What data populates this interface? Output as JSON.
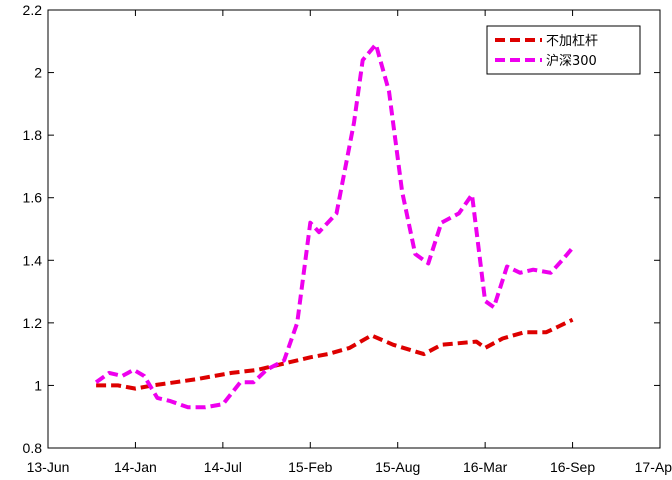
{
  "chart_data": {
    "type": "line",
    "title": "",
    "xlabel": "",
    "ylabel": "",
    "x_ticks": [
      "13-Jun",
      "14-Jan",
      "14-Jul",
      "15-Feb",
      "15-Aug",
      "16-Mar",
      "16-Sep",
      "17-Ap"
    ],
    "y_ticks": [
      "0.8",
      "1",
      "1.2",
      "1.4",
      "1.6",
      "1.8",
      "2",
      "2.2"
    ],
    "ylim": [
      0.8,
      2.2
    ],
    "grid": false,
    "legend_position": "top-right",
    "series": [
      {
        "name": "不加杠杆",
        "color": "#dd0000",
        "style": "dashed",
        "points": [
          [
            0.55,
            1.0
          ],
          [
            0.8,
            1.0
          ],
          [
            1.0,
            0.99
          ],
          [
            1.2,
            1.0
          ],
          [
            1.45,
            1.01
          ],
          [
            1.7,
            1.02
          ],
          [
            1.9,
            1.03
          ],
          [
            2.1,
            1.04
          ],
          [
            2.4,
            1.05
          ],
          [
            2.7,
            1.07
          ],
          [
            3.0,
            1.09
          ],
          [
            3.2,
            1.1
          ],
          [
            3.45,
            1.12
          ],
          [
            3.7,
            1.16
          ],
          [
            3.95,
            1.13
          ],
          [
            4.3,
            1.1
          ],
          [
            4.5,
            1.13
          ],
          [
            4.9,
            1.14
          ],
          [
            5.0,
            1.12
          ],
          [
            5.2,
            1.15
          ],
          [
            5.45,
            1.17
          ],
          [
            5.7,
            1.17
          ],
          [
            5.85,
            1.19
          ],
          [
            6.0,
            1.21
          ]
        ]
      },
      {
        "name": "沪深300",
        "color": "#ee00ee",
        "style": "dashed",
        "points": [
          [
            0.55,
            1.01
          ],
          [
            0.7,
            1.04
          ],
          [
            0.85,
            1.03
          ],
          [
            0.98,
            1.05
          ],
          [
            1.1,
            1.03
          ],
          [
            1.25,
            0.96
          ],
          [
            1.4,
            0.95
          ],
          [
            1.6,
            0.93
          ],
          [
            1.8,
            0.93
          ],
          [
            2.0,
            0.94
          ],
          [
            2.2,
            1.01
          ],
          [
            2.35,
            1.01
          ],
          [
            2.5,
            1.05
          ],
          [
            2.7,
            1.08
          ],
          [
            2.85,
            1.2
          ],
          [
            3.0,
            1.52
          ],
          [
            3.1,
            1.49
          ],
          [
            3.3,
            1.55
          ],
          [
            3.5,
            1.84
          ],
          [
            3.6,
            2.04
          ],
          [
            3.75,
            2.09
          ],
          [
            3.9,
            1.94
          ],
          [
            4.05,
            1.62
          ],
          [
            4.2,
            1.42
          ],
          [
            4.35,
            1.39
          ],
          [
            4.5,
            1.52
          ],
          [
            4.7,
            1.55
          ],
          [
            4.85,
            1.61
          ],
          [
            5.0,
            1.27
          ],
          [
            5.1,
            1.25
          ],
          [
            5.25,
            1.38
          ],
          [
            5.4,
            1.36
          ],
          [
            5.55,
            1.37
          ],
          [
            5.75,
            1.36
          ],
          [
            5.88,
            1.4
          ],
          [
            6.0,
            1.44
          ]
        ]
      }
    ]
  }
}
